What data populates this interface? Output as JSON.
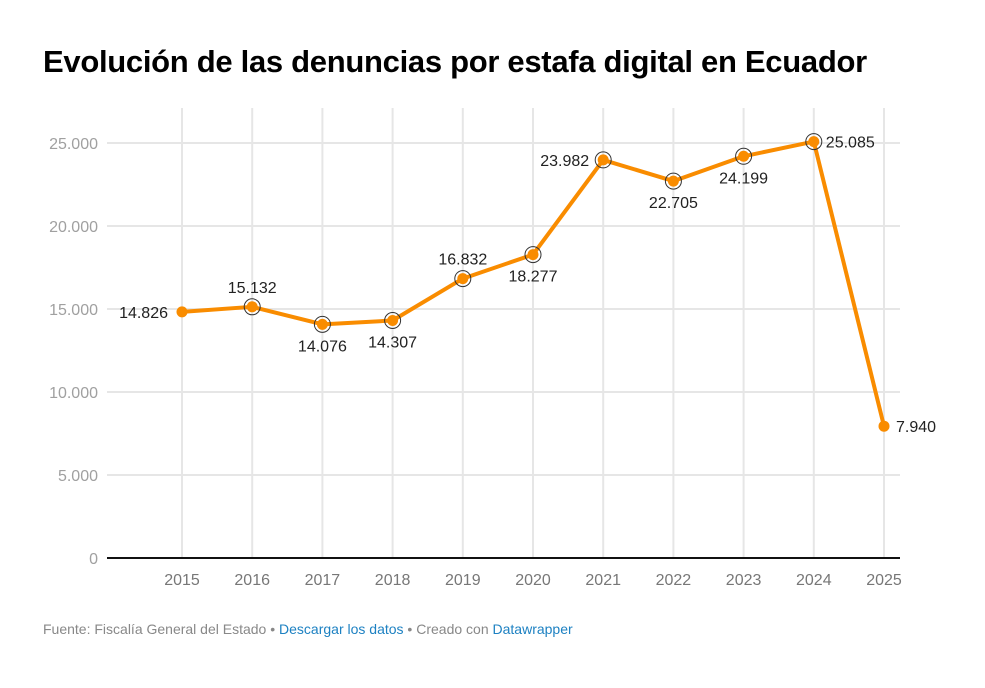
{
  "chart_data": {
    "type": "line",
    "title": "Evolución de las denuncias por estafa digital en Ecuador",
    "xlabel": "",
    "ylabel": "",
    "x": [
      "2015",
      "2016",
      "2017",
      "2018",
      "2019",
      "2020",
      "2021",
      "2022",
      "2023",
      "2024",
      "2025"
    ],
    "series": [
      {
        "name": "Denuncias por estafa digital",
        "color": "#f98c00",
        "values": [
          14826,
          15132,
          14076,
          14307,
          16832,
          18277,
          23982,
          22705,
          24199,
          25085,
          7940
        ],
        "labels": [
          "14.826",
          "15.132",
          "14.076",
          "14.307",
          "16.832",
          "18.277",
          "23.982",
          "22.705",
          "24.199",
          "25.085",
          "7.940"
        ],
        "label_positions": [
          "left",
          "top",
          "bottom",
          "bottom",
          "top",
          "bottom",
          "left",
          "bottom",
          "bottom",
          "right",
          "right"
        ],
        "highlighted": [
          false,
          true,
          true,
          true,
          true,
          true,
          true,
          true,
          true,
          true,
          false
        ]
      }
    ],
    "ylim": [
      0,
      25000
    ],
    "yticks": [
      0,
      5000,
      10000,
      15000,
      20000,
      25000
    ],
    "ytick_labels": [
      "0",
      "5.000",
      "10.000",
      "15.000",
      "20.000",
      "25.000"
    ],
    "grid": true,
    "legend": "none"
  },
  "footer": {
    "source": "Fuente: Fiscalía General del Estado",
    "separator": " • ",
    "download_link": "Descargar los datos",
    "created_with": "Creado con",
    "tool_link": "Datawrapper"
  }
}
